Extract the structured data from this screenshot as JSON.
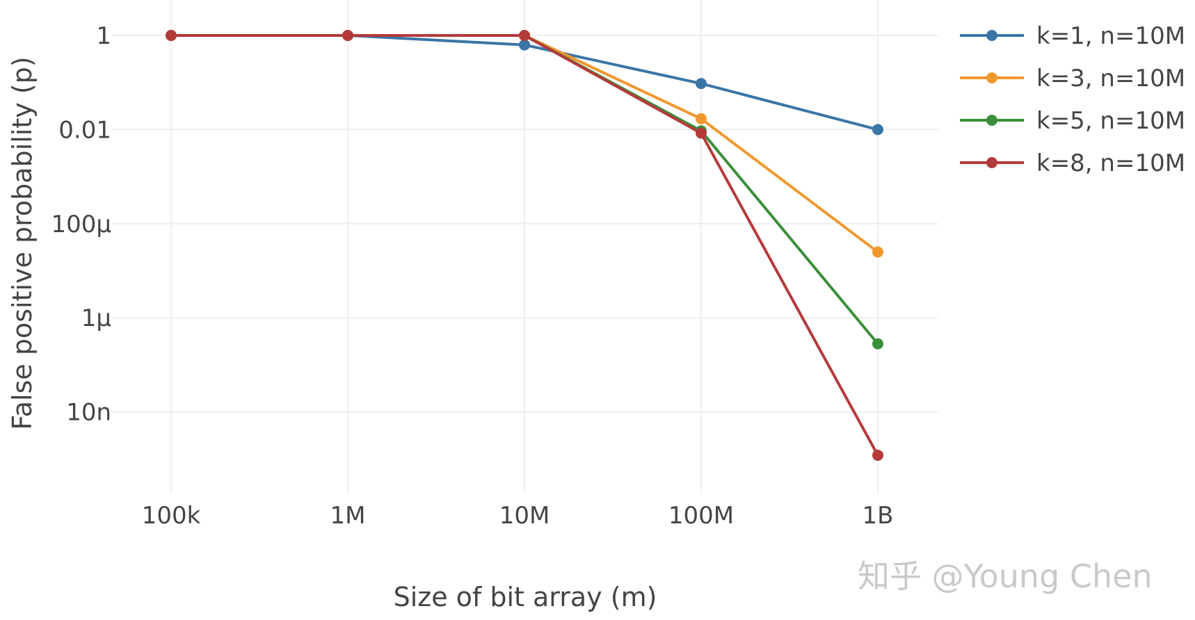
{
  "chart_data": {
    "type": "line",
    "title": "",
    "xlabel": "Size of bit array (m)",
    "ylabel": "False positive probability (p)",
    "x_scale": "log",
    "y_scale": "log",
    "x": [
      100000,
      1000000,
      10000000,
      100000000,
      1000000000
    ],
    "x_tick_labels": [
      "100k",
      "1M",
      "10M",
      "100M",
      "1B"
    ],
    "y_ticks": [
      1,
      0.01,
      0.0001,
      1e-06,
      1e-08
    ],
    "y_tick_labels": [
      "1",
      "0.01",
      "100μ",
      "1μ",
      "10n"
    ],
    "ylim": [
      1e-09,
      1.5
    ],
    "xlim": [
      50000,
      2000000000
    ],
    "grid": true,
    "legend_position": "top-right",
    "series": [
      {
        "name": "k=1, n=10M",
        "color": "#3a75a6",
        "values": [
          1,
          1,
          0.63,
          0.095,
          0.01
        ]
      },
      {
        "name": "k=3, n=10M",
        "color": "#f0982e",
        "values": [
          1,
          1,
          1,
          0.017,
          2.5e-05
        ]
      },
      {
        "name": "k=5, n=10M",
        "color": "#3a8f3a",
        "values": [
          1,
          1,
          1,
          0.0094,
          2.8e-07
        ]
      },
      {
        "name": "k=8, n=10M",
        "color": "#b43a3a",
        "values": [
          1,
          1,
          1,
          0.0084,
          1.2e-09
        ]
      }
    ]
  },
  "watermark": "知乎 @Young Chen"
}
